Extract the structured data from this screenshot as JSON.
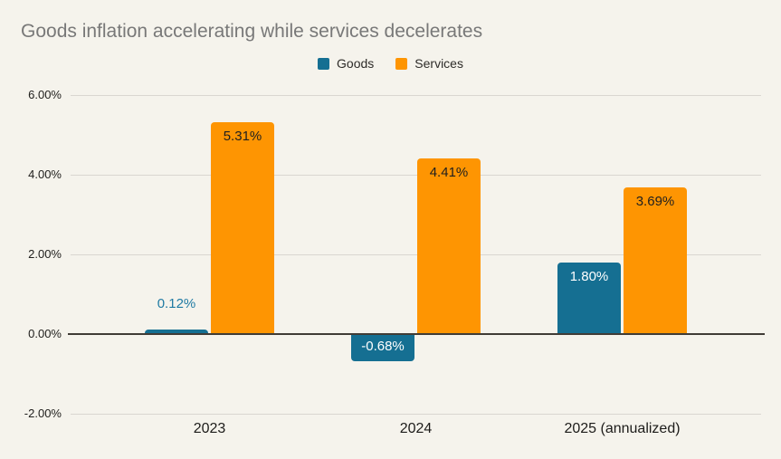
{
  "colors": {
    "background": "#f5f3ec",
    "title": "#787878",
    "goods": "#156f92",
    "services": "#fe9502",
    "gridline": "#d9d6d0",
    "zero_axis": "#403c36",
    "dark_label": "#1f1f1f",
    "goods_outside_label": "#1f7aa3"
  },
  "chart_data": {
    "type": "bar",
    "title": "Goods inflation accelerating while services decelerates",
    "categories": [
      "2023",
      "2024",
      "2025 (annualized)"
    ],
    "series": [
      {
        "name": "Goods",
        "color": "#156f92",
        "values": [
          0.12,
          -0.68,
          1.8
        ],
        "annotations": [
          {
            "text": "0.12%",
            "placement": "above",
            "color": "#1f7aa3"
          },
          {
            "text": "-0.68%",
            "placement": "inside",
            "color": "#ffffff"
          },
          {
            "text": "1.80%",
            "placement": "inside",
            "color": "#ffffff"
          }
        ]
      },
      {
        "name": "Services",
        "color": "#fe9502",
        "values": [
          5.31,
          4.41,
          3.69
        ],
        "annotations": [
          {
            "text": "5.31%",
            "placement": "inside",
            "color": "#1f1f1f"
          },
          {
            "text": "4.41%",
            "placement": "inside",
            "color": "#1f1f1f"
          },
          {
            "text": "3.69%",
            "placement": "inside",
            "color": "#1f1f1f"
          }
        ]
      }
    ],
    "xlabel": "",
    "ylabel": "",
    "ylim": [
      -2,
      6
    ],
    "yticks": [
      {
        "value": 6,
        "label": "6.00%"
      },
      {
        "value": 4,
        "label": "4.00%"
      },
      {
        "value": 2,
        "label": "2.00%"
      },
      {
        "value": 0,
        "label": "0.00%"
      },
      {
        "value": -2,
        "label": "-2.00%"
      }
    ],
    "grid": true,
    "legend_position": "top-center"
  }
}
